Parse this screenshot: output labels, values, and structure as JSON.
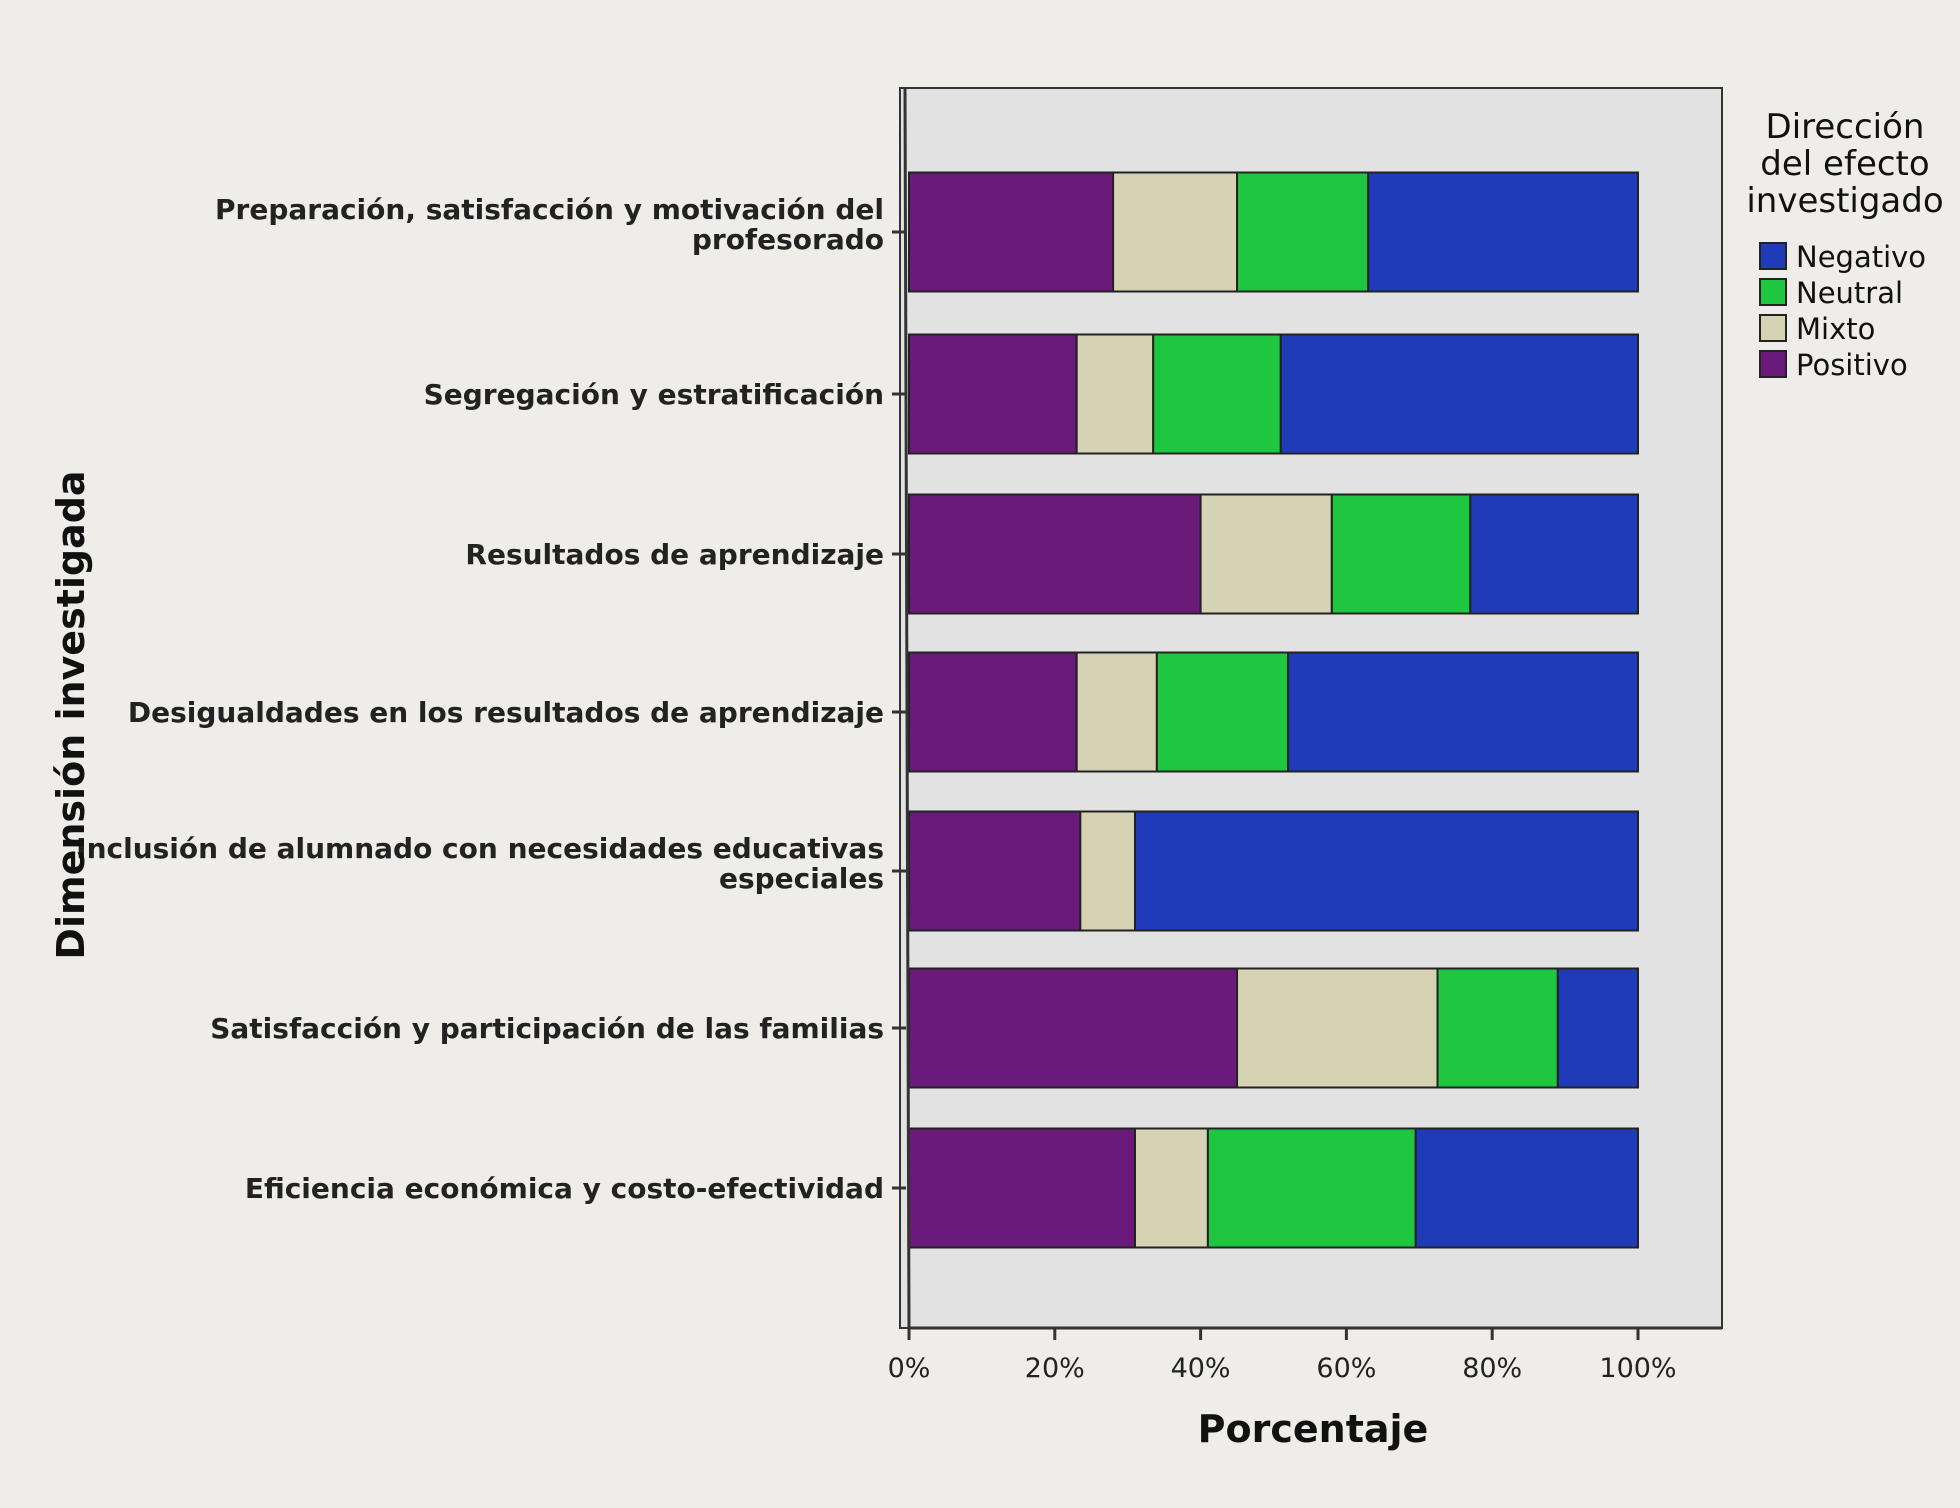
{
  "chart_data": {
    "type": "bar",
    "orientation": "horizontal",
    "stacked": true,
    "normalized_percent": true,
    "xlabel": "Porcentaje",
    "ylabel": "Dimensión investigada",
    "xlim": [
      0,
      100
    ],
    "xticks": [
      "0%",
      "20%",
      "40%",
      "60%",
      "80%",
      "100%"
    ],
    "grid": false,
    "legend": {
      "title": "Dirección del efecto investigado",
      "title_lines": [
        "Dirección",
        "del efecto",
        "investigado"
      ],
      "placement": "right",
      "entries": [
        "Negativo",
        "Neutral",
        "Mixto",
        "Positivo"
      ]
    },
    "categories": [
      [
        "Preparación, satisfacción y motivación del",
        "profesorado"
      ],
      [
        "Segregación y estratificación"
      ],
      [
        "Resultados de aprendizaje"
      ],
      [
        "Desigualdades en los resultados de aprendizaje"
      ],
      [
        "Inclusión de alumnado con necesidades educativas",
        "especiales"
      ],
      [
        "Satisfacción y participación de las familias"
      ],
      [
        "Eficiencia económica y costo-efectividad"
      ]
    ],
    "series": [
      {
        "name": "Positivo",
        "color": "#6a1a7a",
        "values": [
          28,
          23,
          40,
          23,
          23.5,
          45,
          31
        ]
      },
      {
        "name": "Mixto",
        "color": "#d6d3b4",
        "values": [
          17,
          10.5,
          18,
          11,
          7.5,
          27.5,
          10
        ]
      },
      {
        "name": "Neutral",
        "color": "#1fc63f",
        "values": [
          18,
          17.5,
          19,
          18,
          0,
          16.5,
          28.5
        ]
      },
      {
        "name": "Negativo",
        "color": "#1f3bb8",
        "values": [
          37,
          49,
          23,
          48,
          69,
          11,
          30.5
        ]
      }
    ]
  }
}
